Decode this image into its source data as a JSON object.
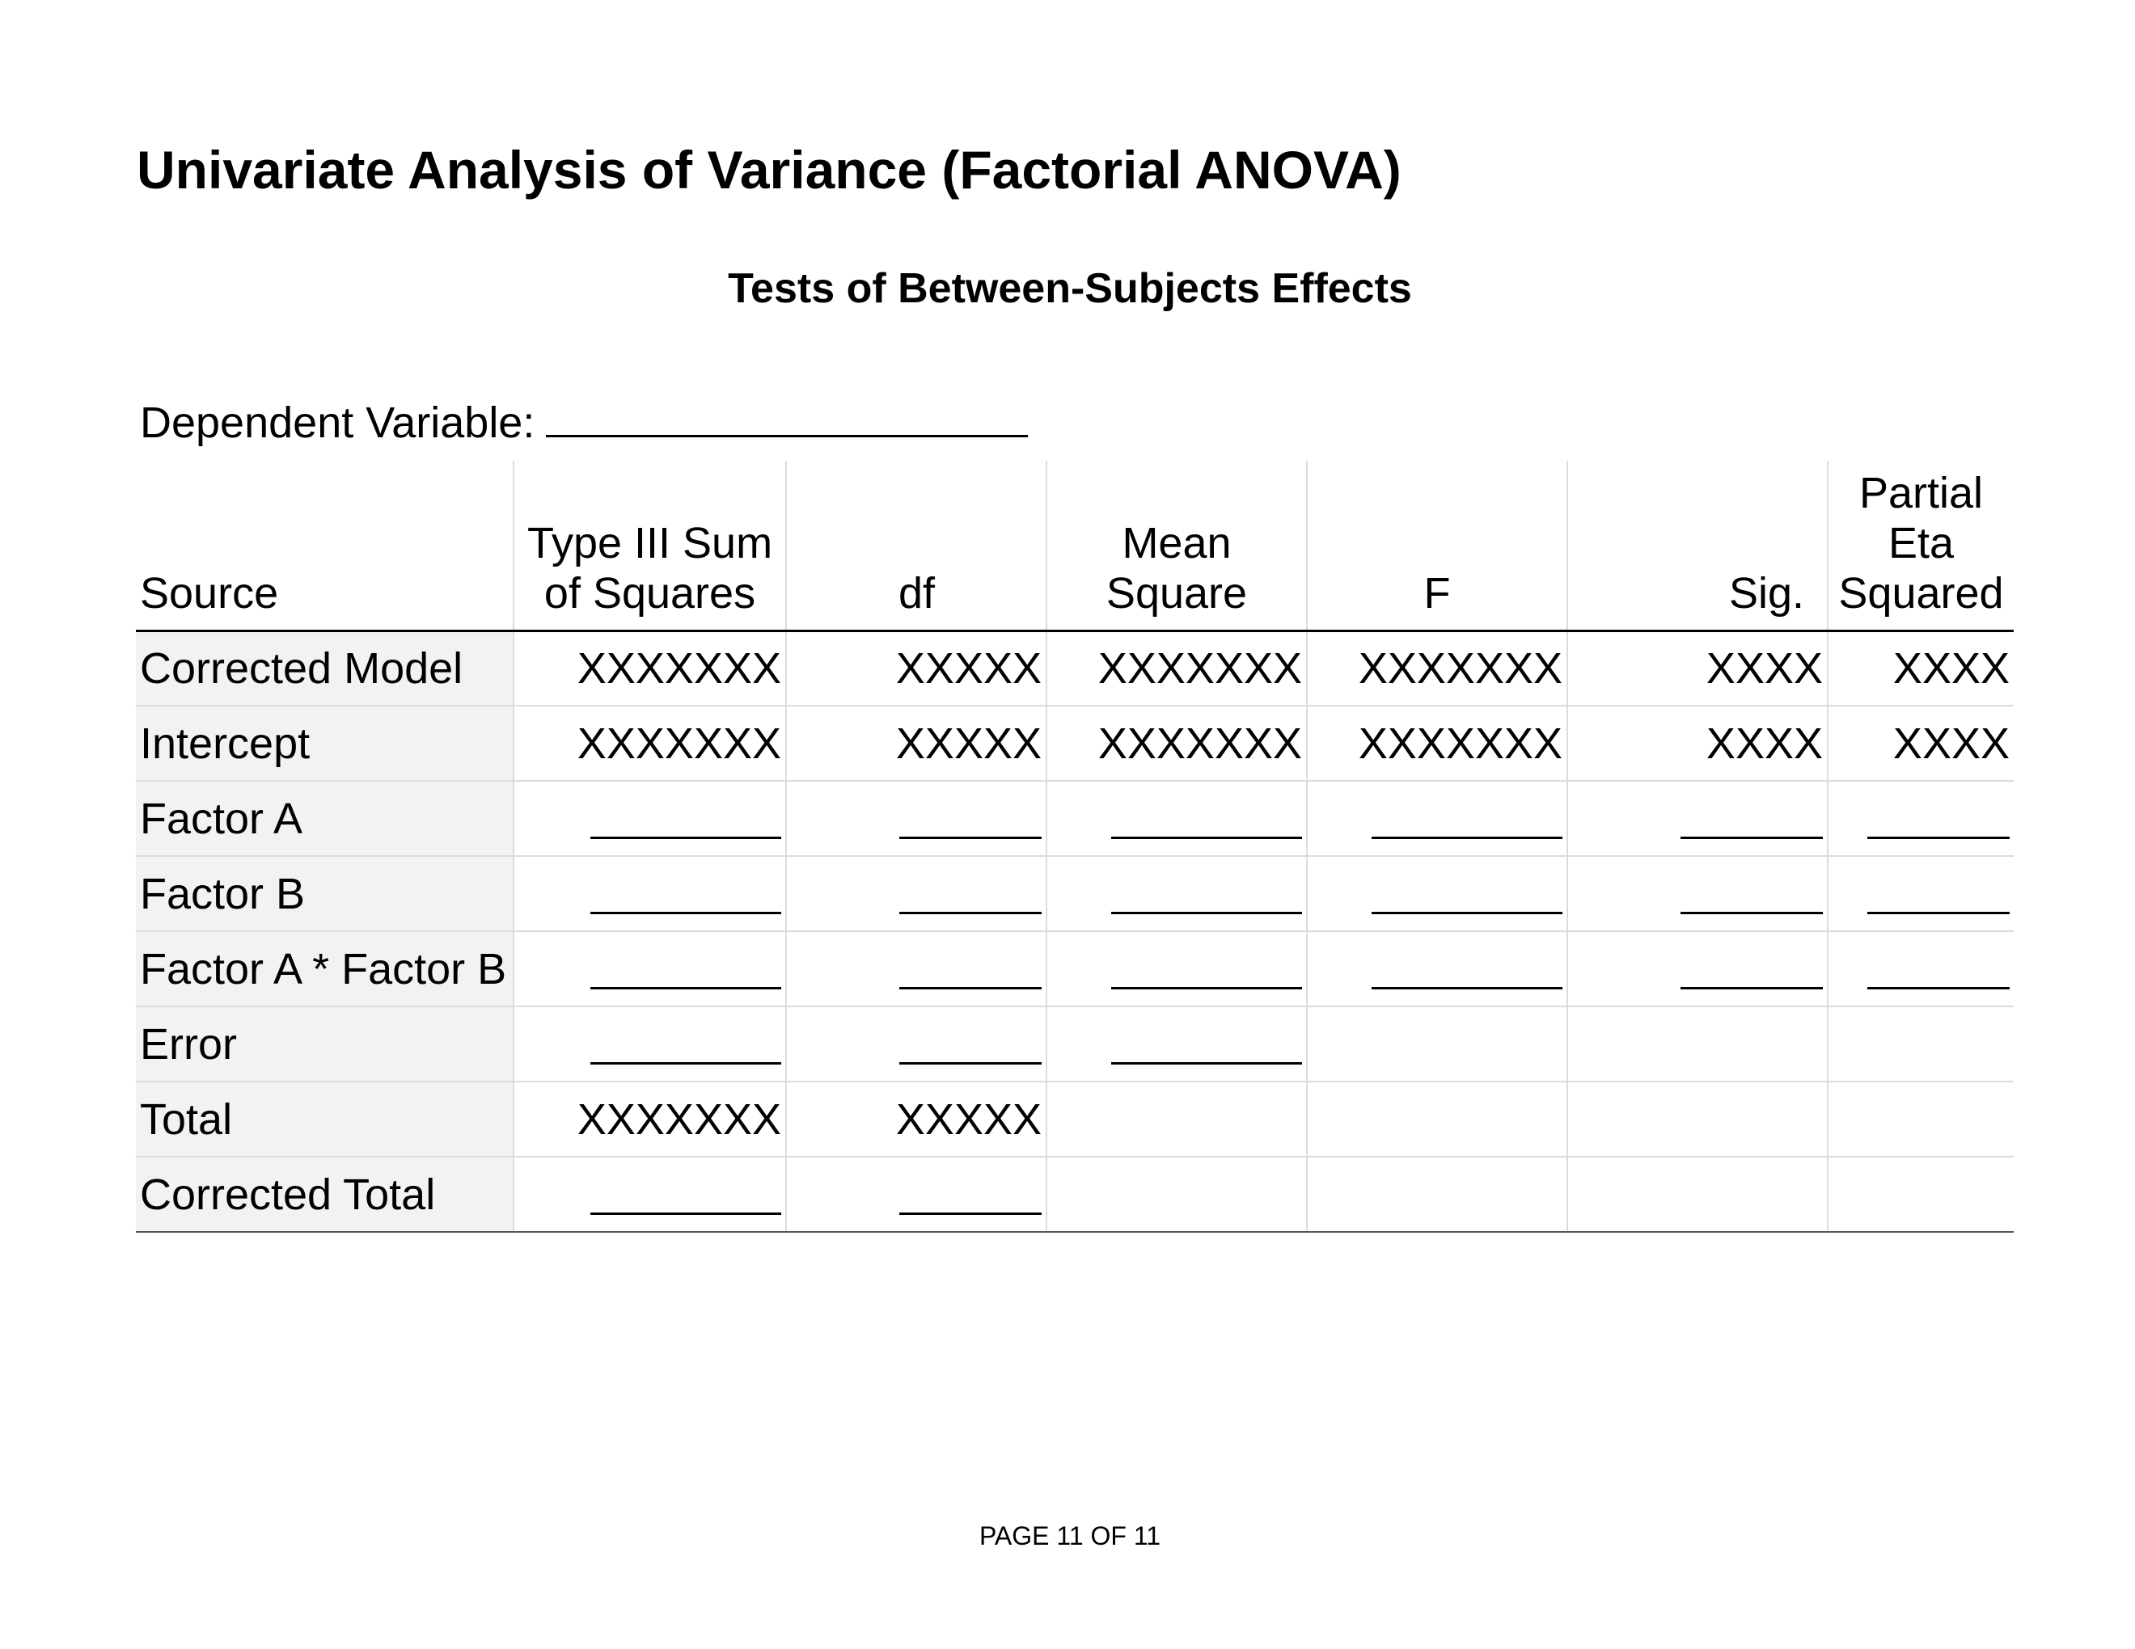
{
  "document": {
    "title": "Univariate Analysis of Variance (Factorial ANOVA)",
    "table_title": "Tests of Between-Subjects Effects",
    "dependent_variable_label": "Dependent Variable:",
    "footer": "PAGE 11 OF 11"
  },
  "table": {
    "headers": {
      "source": "Source",
      "ss_line1": "Type III Sum",
      "ss_line2": "of Squares",
      "df": "df",
      "ms_line1": "Mean",
      "ms_line2": "Square",
      "f": "F",
      "sig": "Sig.",
      "eta_line1": "Partial",
      "eta_line2": "Eta",
      "eta_line3": "Squared"
    },
    "rows": [
      {
        "source": "Corrected Model",
        "ss": "XXXXXXX",
        "df": "XXXXX",
        "ms": "XXXXXXX",
        "f": "XXXXXXX",
        "sig": "XXXX",
        "eta": "XXXX"
      },
      {
        "source": "Intercept",
        "ss": "XXXXXXX",
        "df": "XXXXX",
        "ms": "XXXXXXX",
        "f": "XXXXXXX",
        "sig": "XXXX",
        "eta": "XXXX"
      },
      {
        "source": "Factor A",
        "ss": "",
        "df": "",
        "ms": "",
        "f": "",
        "sig": "",
        "eta": ""
      },
      {
        "source": "Factor B",
        "ss": "",
        "df": "",
        "ms": "",
        "f": "",
        "sig": "",
        "eta": ""
      },
      {
        "source": "Factor A * Factor B",
        "ss": "",
        "df": "",
        "ms": "",
        "f": "",
        "sig": "",
        "eta": ""
      },
      {
        "source": "Error",
        "ss": "",
        "df": "",
        "ms": ""
      },
      {
        "source": "Total",
        "ss": "XXXXXXX",
        "df": "XXXXX"
      },
      {
        "source": "Corrected Total",
        "ss": "",
        "df": ""
      }
    ]
  }
}
